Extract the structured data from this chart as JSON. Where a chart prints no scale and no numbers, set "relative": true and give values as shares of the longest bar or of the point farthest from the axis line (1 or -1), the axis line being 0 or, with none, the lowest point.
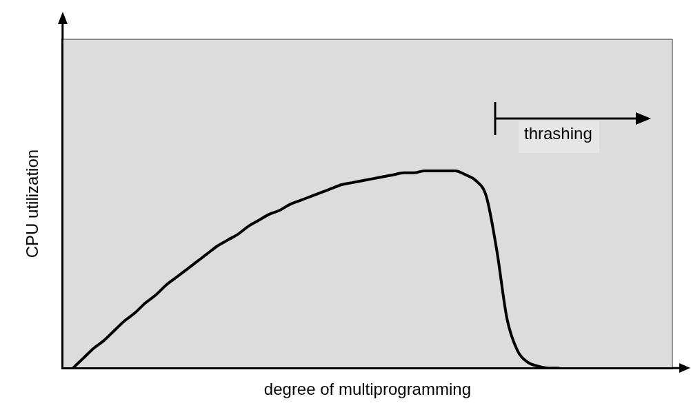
{
  "chart_data": {
    "type": "line",
    "relative": true,
    "xlabel": "degree of multiprogramming",
    "ylabel": "CPU utilization",
    "annotations": [
      "thrashing"
    ],
    "grid": false,
    "legend": false,
    "categories": [
      null,
      null,
      null,
      null,
      null,
      null,
      null,
      null,
      null,
      null,
      null,
      null,
      null,
      null,
      null,
      null,
      null,
      null,
      null,
      null,
      null,
      null,
      null,
      null,
      null,
      null,
      null,
      null,
      null,
      null,
      null,
      null,
      null,
      null,
      null,
      null,
      null,
      null,
      null,
      null,
      null,
      null,
      null,
      null,
      null,
      null,
      null,
      null,
      null,
      null,
      null,
      null,
      null,
      null,
      null,
      null,
      null,
      null,
      null,
      null
    ],
    "series": [
      {
        "color": "#000000",
        "values": [
          null,
          0,
          0.05,
          0.1,
          0.14,
          0.19,
          0.24,
          0.28,
          0.33,
          0.37,
          0.42,
          0.46,
          0.5,
          0.54,
          0.58,
          0.62,
          0.65,
          0.68,
          0.72,
          0.75,
          0.78,
          0.8,
          0.83,
          0.85,
          0.87,
          0.89,
          0.91,
          0.93,
          0.94,
          0.95,
          0.96,
          0.97,
          0.98,
          0.99,
          0.99,
          1,
          1,
          1,
          1,
          0.98,
          0.95,
          0.87,
          0.6,
          0.25,
          0.09,
          0.03,
          0.01,
          0,
          0,
          null,
          null,
          null,
          null,
          null,
          null,
          null,
          null,
          null,
          null,
          null
        ]
      }
    ]
  }
}
